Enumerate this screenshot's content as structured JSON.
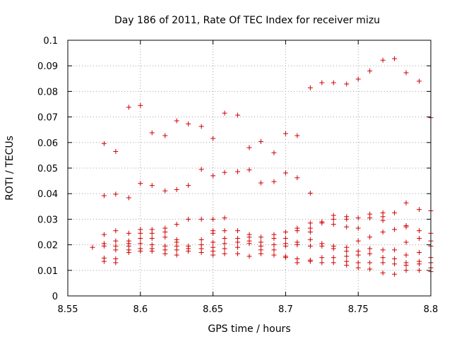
{
  "chart_data": {
    "type": "scatter",
    "title": "Day 186 of 2011, Rate Of TEC Index for receiver mizu",
    "xlabel": "GPS time / hours",
    "ylabel": "ROTI / TECUs",
    "xlim": [
      8.55,
      8.8
    ],
    "ylim": [
      0,
      0.1
    ],
    "xticks": [
      8.55,
      8.6,
      8.65,
      8.7,
      8.75,
      8.8
    ],
    "xtick_labels": [
      "8.55",
      "8.6",
      "8.65",
      "8.7",
      "8.75",
      "8.8"
    ],
    "yticks": [
      0,
      0.01,
      0.02,
      0.03,
      0.04,
      0.05,
      0.06,
      0.07,
      0.08,
      0.09,
      0.1
    ],
    "ytick_labels": [
      "0",
      "0.01",
      "0.02",
      "0.03",
      "0.04",
      "0.05",
      "0.06",
      "0.07",
      "0.08",
      "0.09",
      "0.1"
    ],
    "grid": true,
    "marker": "+",
    "series_color": "#d00000",
    "points": [
      [
        8.575,
        0.0596
      ],
      [
        8.583,
        0.0565
      ],
      [
        8.592,
        0.0738
      ],
      [
        8.6,
        0.0745
      ],
      [
        8.608,
        0.0638
      ],
      [
        8.617,
        0.0627
      ],
      [
        8.625,
        0.0685
      ],
      [
        8.633,
        0.0673
      ],
      [
        8.642,
        0.0663
      ],
      [
        8.65,
        0.0616
      ],
      [
        8.658,
        0.0715
      ],
      [
        8.667,
        0.0707
      ],
      [
        8.675,
        0.058
      ],
      [
        8.683,
        0.0604
      ],
      [
        8.692,
        0.056
      ],
      [
        8.7,
        0.0635
      ],
      [
        8.708,
        0.0627
      ],
      [
        8.717,
        0.0814
      ],
      [
        8.725,
        0.0834
      ],
      [
        8.733,
        0.0834
      ],
      [
        8.742,
        0.0829
      ],
      [
        8.75,
        0.0848
      ],
      [
        8.758,
        0.088
      ],
      [
        8.767,
        0.0922
      ],
      [
        8.775,
        0.0928
      ],
      [
        8.783,
        0.0873
      ],
      [
        8.792,
        0.084
      ],
      [
        8.8,
        0.0697
      ],
      [
        8.575,
        0.0392
      ],
      [
        8.583,
        0.0398
      ],
      [
        8.592,
        0.0384
      ],
      [
        8.6,
        0.044
      ],
      [
        8.608,
        0.0432
      ],
      [
        8.617,
        0.0411
      ],
      [
        8.625,
        0.0416
      ],
      [
        8.633,
        0.0432
      ],
      [
        8.642,
        0.0495
      ],
      [
        8.65,
        0.047
      ],
      [
        8.658,
        0.0483
      ],
      [
        8.667,
        0.0486
      ],
      [
        8.675,
        0.0493
      ],
      [
        8.683,
        0.0442
      ],
      [
        8.692,
        0.0447
      ],
      [
        8.7,
        0.0481
      ],
      [
        8.708,
        0.0462
      ],
      [
        8.717,
        0.0402
      ],
      [
        8.783,
        0.0364
      ],
      [
        8.792,
        0.0338
      ],
      [
        8.8,
        0.0333
      ],
      [
        8.567,
        0.019
      ],
      [
        8.575,
        0.024
      ],
      [
        8.575,
        0.0205
      ],
      [
        8.575,
        0.0195
      ],
      [
        8.575,
        0.0148
      ],
      [
        8.575,
        0.0135
      ],
      [
        8.583,
        0.0255
      ],
      [
        8.583,
        0.0215
      ],
      [
        8.583,
        0.0195
      ],
      [
        8.583,
        0.018
      ],
      [
        8.583,
        0.0145
      ],
      [
        8.583,
        0.013
      ],
      [
        8.592,
        0.0245
      ],
      [
        8.592,
        0.0215
      ],
      [
        8.592,
        0.0205
      ],
      [
        8.592,
        0.0195
      ],
      [
        8.592,
        0.018
      ],
      [
        8.592,
        0.017
      ],
      [
        8.6,
        0.026
      ],
      [
        8.6,
        0.0245
      ],
      [
        8.6,
        0.0225
      ],
      [
        8.6,
        0.0205
      ],
      [
        8.6,
        0.0185
      ],
      [
        8.6,
        0.0175
      ],
      [
        8.608,
        0.026
      ],
      [
        8.608,
        0.0245
      ],
      [
        8.608,
        0.0225
      ],
      [
        8.608,
        0.02
      ],
      [
        8.608,
        0.0185
      ],
      [
        8.608,
        0.0175
      ],
      [
        8.617,
        0.0265
      ],
      [
        8.617,
        0.025
      ],
      [
        8.617,
        0.023
      ],
      [
        8.617,
        0.0195
      ],
      [
        8.617,
        0.018
      ],
      [
        8.617,
        0.0165
      ],
      [
        8.625,
        0.028
      ],
      [
        8.625,
        0.022
      ],
      [
        8.625,
        0.021
      ],
      [
        8.625,
        0.0195
      ],
      [
        8.625,
        0.018
      ],
      [
        8.625,
        0.016
      ],
      [
        8.633,
        0.03
      ],
      [
        8.633,
        0.0195
      ],
      [
        8.633,
        0.0185
      ],
      [
        8.633,
        0.0175
      ],
      [
        8.642,
        0.03
      ],
      [
        8.642,
        0.022
      ],
      [
        8.642,
        0.02
      ],
      [
        8.642,
        0.0185
      ],
      [
        8.642,
        0.017
      ],
      [
        8.65,
        0.03
      ],
      [
        8.65,
        0.0255
      ],
      [
        8.65,
        0.0245
      ],
      [
        8.65,
        0.021
      ],
      [
        8.65,
        0.019
      ],
      [
        8.65,
        0.0175
      ],
      [
        8.65,
        0.016
      ],
      [
        8.658,
        0.0305
      ],
      [
        8.658,
        0.0255
      ],
      [
        8.658,
        0.0225
      ],
      [
        8.658,
        0.0205
      ],
      [
        8.658,
        0.0185
      ],
      [
        8.658,
        0.0165
      ],
      [
        8.667,
        0.0255
      ],
      [
        8.667,
        0.0225
      ],
      [
        8.667,
        0.021
      ],
      [
        8.667,
        0.019
      ],
      [
        8.667,
        0.0165
      ],
      [
        8.675,
        0.024
      ],
      [
        8.675,
        0.023
      ],
      [
        8.675,
        0.0215
      ],
      [
        8.675,
        0.0205
      ],
      [
        8.675,
        0.0155
      ],
      [
        8.683,
        0.023
      ],
      [
        8.683,
        0.021
      ],
      [
        8.683,
        0.0195
      ],
      [
        8.683,
        0.018
      ],
      [
        8.683,
        0.0165
      ],
      [
        8.692,
        0.024
      ],
      [
        8.692,
        0.0225
      ],
      [
        8.692,
        0.02
      ],
      [
        8.692,
        0.018
      ],
      [
        8.692,
        0.016
      ],
      [
        8.7,
        0.025
      ],
      [
        8.7,
        0.0225
      ],
      [
        8.7,
        0.0205
      ],
      [
        8.7,
        0.0195
      ],
      [
        8.7,
        0.0155
      ],
      [
        8.7,
        0.015
      ],
      [
        8.708,
        0.0265
      ],
      [
        8.708,
        0.0255
      ],
      [
        8.708,
        0.021
      ],
      [
        8.708,
        0.02
      ],
      [
        8.708,
        0.0145
      ],
      [
        8.708,
        0.013
      ],
      [
        8.717,
        0.0285
      ],
      [
        8.717,
        0.0265
      ],
      [
        8.717,
        0.025
      ],
      [
        8.717,
        0.022
      ],
      [
        8.717,
        0.0195
      ],
      [
        8.717,
        0.014
      ],
      [
        8.717,
        0.0135
      ],
      [
        8.725,
        0.029
      ],
      [
        8.725,
        0.0285
      ],
      [
        8.725,
        0.0205
      ],
      [
        8.725,
        0.0195
      ],
      [
        8.725,
        0.015
      ],
      [
        8.725,
        0.013
      ],
      [
        8.733,
        0.0315
      ],
      [
        8.733,
        0.03
      ],
      [
        8.733,
        0.028
      ],
      [
        8.733,
        0.0195
      ],
      [
        8.733,
        0.0185
      ],
      [
        8.733,
        0.015
      ],
      [
        8.733,
        0.013
      ],
      [
        8.742,
        0.031
      ],
      [
        8.742,
        0.03
      ],
      [
        8.742,
        0.027
      ],
      [
        8.742,
        0.019
      ],
      [
        8.742,
        0.0175
      ],
      [
        8.742,
        0.0155
      ],
      [
        8.742,
        0.0135
      ],
      [
        8.742,
        0.012
      ],
      [
        8.75,
        0.0305
      ],
      [
        8.75,
        0.0265
      ],
      [
        8.75,
        0.0215
      ],
      [
        8.75,
        0.0175
      ],
      [
        8.75,
        0.016
      ],
      [
        8.75,
        0.013
      ],
      [
        8.75,
        0.011
      ],
      [
        8.758,
        0.032
      ],
      [
        8.758,
        0.0305
      ],
      [
        8.758,
        0.023
      ],
      [
        8.758,
        0.0185
      ],
      [
        8.758,
        0.0165
      ],
      [
        8.758,
        0.013
      ],
      [
        8.758,
        0.0105
      ],
      [
        8.767,
        0.0325
      ],
      [
        8.767,
        0.031
      ],
      [
        8.767,
        0.0295
      ],
      [
        8.767,
        0.025
      ],
      [
        8.767,
        0.018
      ],
      [
        8.767,
        0.015
      ],
      [
        8.767,
        0.013
      ],
      [
        8.767,
        0.009
      ],
      [
        8.775,
        0.0325
      ],
      [
        8.775,
        0.026
      ],
      [
        8.775,
        0.018
      ],
      [
        8.775,
        0.0145
      ],
      [
        8.775,
        0.0125
      ],
      [
        8.775,
        0.0085
      ],
      [
        8.783,
        0.0275
      ],
      [
        8.783,
        0.027
      ],
      [
        8.783,
        0.021
      ],
      [
        8.783,
        0.016
      ],
      [
        8.783,
        0.013
      ],
      [
        8.783,
        0.012
      ],
      [
        8.783,
        0.01
      ],
      [
        8.792,
        0.0255
      ],
      [
        8.792,
        0.0225
      ],
      [
        8.792,
        0.017
      ],
      [
        8.792,
        0.0135
      ],
      [
        8.792,
        0.0125
      ],
      [
        8.792,
        0.01
      ],
      [
        8.8,
        0.0245
      ],
      [
        8.8,
        0.0215
      ],
      [
        8.8,
        0.0195
      ],
      [
        8.8,
        0.015
      ],
      [
        8.8,
        0.013
      ],
      [
        8.8,
        0.011
      ],
      [
        8.8,
        0.0095
      ]
    ]
  }
}
